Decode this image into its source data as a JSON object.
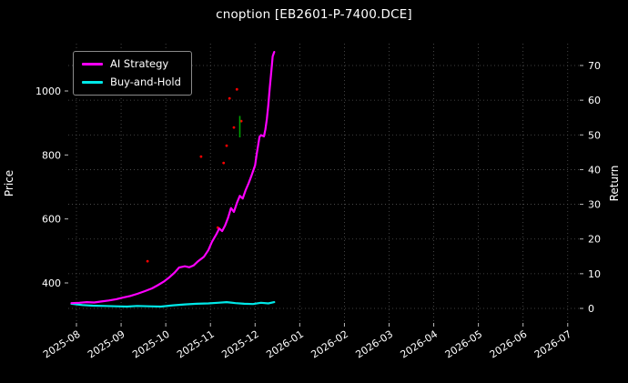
{
  "title": "cnoption [EB2601-P-7400.DCE]",
  "legend": {
    "items": [
      {
        "label": "AI Strategy",
        "color": "#ff00ff"
      },
      {
        "label": "Buy-and-Hold",
        "color": "#00e8e8"
      }
    ]
  },
  "axes": {
    "left_label": "Price",
    "right_label": "Return",
    "x_ticks": [
      "2025-08",
      "2025-09",
      "2025-10",
      "2025-11",
      "2025-12",
      "2026-01",
      "2026-02",
      "2026-03",
      "2026-04",
      "2026-05",
      "2026-06",
      "2026-07"
    ],
    "left_ticks": [
      400,
      600,
      800,
      1000
    ],
    "right_ticks": [
      0,
      10,
      20,
      30,
      40,
      50,
      60,
      70
    ]
  },
  "colors": {
    "background": "#000000",
    "text": "#ffffff",
    "tick": "#bbbbbb",
    "grid": "#555555"
  },
  "chart_data": {
    "type": "line",
    "title": "cnoption [EB2601-P-7400.DCE]",
    "xlabel": "",
    "ylabel_left": "Price",
    "ylabel_right": "Return",
    "x_range": [
      "2025-08",
      "2026-07"
    ],
    "left_ylim": [
      275,
      1145
    ],
    "right_ylim": [
      -4,
      76
    ],
    "grid": true,
    "legend_position": "upper left",
    "series": [
      {
        "name": "AI Strategy",
        "color": "#ff00ff",
        "axis": "left",
        "points": [
          [
            "2025-07-28",
            337
          ],
          [
            "2025-08-03",
            338
          ],
          [
            "2025-08-08",
            340
          ],
          [
            "2025-08-13",
            339
          ],
          [
            "2025-08-18",
            342
          ],
          [
            "2025-08-23",
            345
          ],
          [
            "2025-08-28",
            349
          ],
          [
            "2025-09-02",
            354
          ],
          [
            "2025-09-07",
            359
          ],
          [
            "2025-09-12",
            366
          ],
          [
            "2025-09-17",
            374
          ],
          [
            "2025-09-22",
            383
          ],
          [
            "2025-09-26",
            393
          ],
          [
            "2025-09-30",
            404
          ],
          [
            "2025-10-03",
            416
          ],
          [
            "2025-10-07",
            432
          ],
          [
            "2025-10-10",
            448
          ],
          [
            "2025-10-14",
            452
          ],
          [
            "2025-10-17",
            449
          ],
          [
            "2025-10-20",
            455
          ],
          [
            "2025-10-23",
            468
          ],
          [
            "2025-10-27",
            482
          ],
          [
            "2025-10-30",
            503
          ],
          [
            "2025-11-02",
            528
          ],
          [
            "2025-11-05",
            552
          ],
          [
            "2025-11-07",
            570
          ],
          [
            "2025-11-09",
            562
          ],
          [
            "2025-11-11",
            580
          ],
          [
            "2025-11-13",
            604
          ],
          [
            "2025-11-15",
            634
          ],
          [
            "2025-11-17",
            622
          ],
          [
            "2025-11-19",
            650
          ],
          [
            "2025-11-21",
            672
          ],
          [
            "2025-11-23",
            664
          ],
          [
            "2025-11-25",
            690
          ],
          [
            "2025-11-27",
            712
          ],
          [
            "2025-11-29",
            736
          ],
          [
            "2025-12-01",
            768
          ],
          [
            "2025-12-02",
            800
          ],
          [
            "2025-12-03",
            828
          ],
          [
            "2025-12-04",
            856
          ],
          [
            "2025-12-05",
            862
          ],
          [
            "2025-12-07",
            858
          ],
          [
            "2025-12-08",
            880
          ],
          [
            "2025-12-09",
            912
          ],
          [
            "2025-12-10",
            956
          ],
          [
            "2025-12-11",
            1010
          ],
          [
            "2025-12-12",
            1058
          ],
          [
            "2025-12-13",
            1108
          ],
          [
            "2025-12-14",
            1122
          ]
        ]
      },
      {
        "name": "Buy-and-Hold",
        "color": "#00e8e8",
        "axis": "left",
        "points": [
          [
            "2025-07-28",
            335
          ],
          [
            "2025-08-05",
            331
          ],
          [
            "2025-08-12",
            329
          ],
          [
            "2025-08-20",
            328
          ],
          [
            "2025-08-28",
            327
          ],
          [
            "2025-09-05",
            326
          ],
          [
            "2025-09-12",
            328
          ],
          [
            "2025-09-20",
            327
          ],
          [
            "2025-09-28",
            326
          ],
          [
            "2025-10-06",
            330
          ],
          [
            "2025-10-14",
            333
          ],
          [
            "2025-10-22",
            335
          ],
          [
            "2025-10-30",
            336
          ],
          [
            "2025-11-06",
            338
          ],
          [
            "2025-11-12",
            340
          ],
          [
            "2025-11-18",
            337
          ],
          [
            "2025-11-24",
            335
          ],
          [
            "2025-11-30",
            334
          ],
          [
            "2025-12-05",
            338
          ],
          [
            "2025-12-10",
            336
          ],
          [
            "2025-12-14",
            340
          ]
        ]
      }
    ],
    "markers": {
      "red_color": "#ff0000",
      "green_color": "#00a000",
      "red_dots": [
        [
          "2025-09-19",
          468
        ],
        [
          "2025-10-25",
          795
        ],
        [
          "2025-11-06",
          573
        ],
        [
          "2025-11-10",
          775
        ],
        [
          "2025-11-12",
          829
        ],
        [
          "2025-11-14",
          977
        ],
        [
          "2025-11-17",
          886
        ],
        [
          "2025-11-19",
          1005
        ],
        [
          "2025-11-22",
          906
        ]
      ],
      "green_segment": {
        "date": "2025-11-21",
        "price_from": 855,
        "price_to": 922
      }
    }
  }
}
